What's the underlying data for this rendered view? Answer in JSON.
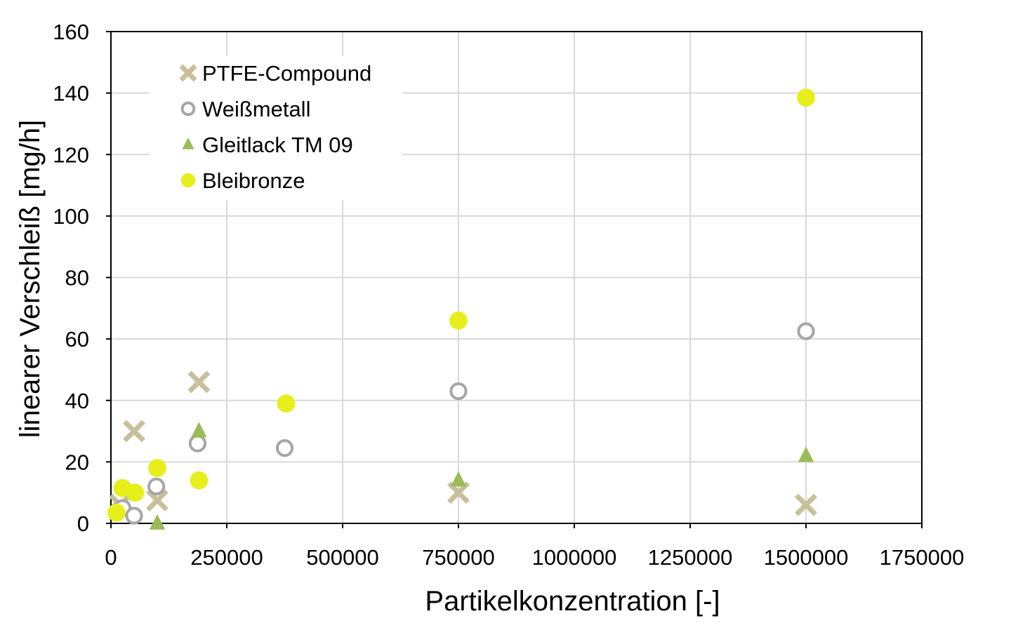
{
  "chart_data": {
    "type": "scatter",
    "title": "",
    "xlabel": "Partikelkonzentration [-]",
    "ylabel": "linearer Verschleiß [mg/h]",
    "xlim": [
      0,
      1750000
    ],
    "ylim": [
      0,
      160
    ],
    "x_ticks": [
      0,
      250000,
      500000,
      750000,
      1000000,
      1250000,
      1500000,
      1750000
    ],
    "x_tick_labels": [
      "0",
      "250000",
      "500000",
      "750000",
      "1000000",
      "1250000",
      "1500000",
      "1750000"
    ],
    "y_ticks": [
      0,
      20,
      40,
      60,
      80,
      100,
      120,
      140,
      160
    ],
    "y_tick_labels": [
      "0",
      "20",
      "40",
      "60",
      "80",
      "100",
      "120",
      "140",
      "160"
    ],
    "grid": true,
    "legend_position": "top-left",
    "series": [
      {
        "name": "PTFE-Compound",
        "marker": "x",
        "color": "#c8bf9b",
        "points": [
          {
            "x": 20000,
            "y": 6
          },
          {
            "x": 50000,
            "y": 30
          },
          {
            "x": 100000,
            "y": 7.5
          },
          {
            "x": 190000,
            "y": 46
          },
          {
            "x": 750000,
            "y": 10
          },
          {
            "x": 1500000,
            "y": 6
          }
        ]
      },
      {
        "name": "Weißmetall",
        "marker": "circle-open",
        "color": "#a6a6a6",
        "points": [
          {
            "x": 15000,
            "y": 4
          },
          {
            "x": 25000,
            "y": 5
          },
          {
            "x": 50000,
            "y": 2.5
          },
          {
            "x": 98000,
            "y": 12
          },
          {
            "x": 187000,
            "y": 26
          },
          {
            "x": 375000,
            "y": 24.5
          },
          {
            "x": 750000,
            "y": 43
          },
          {
            "x": 1500000,
            "y": 62.5
          }
        ]
      },
      {
        "name": "Gleitlack TM 09",
        "marker": "triangle",
        "color": "#9bbb59",
        "points": [
          {
            "x": 100000,
            "y": 0
          },
          {
            "x": 190000,
            "y": 30
          },
          {
            "x": 750000,
            "y": 14
          },
          {
            "x": 1500000,
            "y": 22
          }
        ]
      },
      {
        "name": "Bleibronze",
        "marker": "circle-filled",
        "color": "#e6ef1c",
        "points": [
          {
            "x": 12000,
            "y": 3.5
          },
          {
            "x": 25000,
            "y": 11.5
          },
          {
            "x": 52000,
            "y": 10
          },
          {
            "x": 100000,
            "y": 18
          },
          {
            "x": 190000,
            "y": 14
          },
          {
            "x": 378000,
            "y": 39
          },
          {
            "x": 750000,
            "y": 66
          },
          {
            "x": 1500000,
            "y": 138.5
          }
        ]
      }
    ]
  }
}
